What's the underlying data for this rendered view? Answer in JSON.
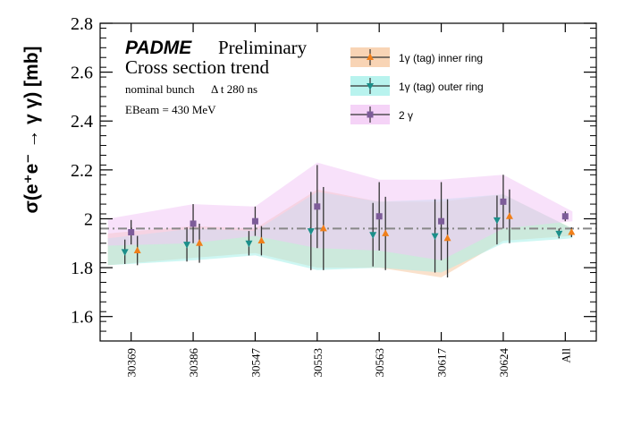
{
  "chart_data": {
    "type": "scatter",
    "title_main": "PADME",
    "title_tag": "Preliminary",
    "subtitle": "Cross section trend",
    "note1": "nominal bunch",
    "note1b": "Δ t 280 ns",
    "note2": "EBeam = 430 MeV",
    "ylabel": "σ(e⁺e⁻ → γ γ) [mb]",
    "ylim": [
      1.5,
      2.8
    ],
    "yticks": [
      "1.6",
      "1.8",
      "2",
      "2.2",
      "2.4",
      "2.6",
      "2.8"
    ],
    "categories": [
      "30369",
      "30386",
      "30547",
      "30553",
      "30563",
      "30617",
      "30624",
      "All"
    ],
    "reference_line": 1.96,
    "series": [
      {
        "name": "1γ (tag) inner ring",
        "color": "#f07f1a",
        "band_color": "#f6c9a2",
        "marker": "triangle-up",
        "values": [
          1.87,
          1.9,
          1.91,
          1.96,
          1.94,
          1.92,
          2.01,
          1.945
        ],
        "errors": [
          0.06,
          0.08,
          0.06,
          0.17,
          0.15,
          0.16,
          0.11,
          0.02
        ],
        "band_low": [
          1.81,
          1.84,
          1.86,
          1.8,
          1.8,
          1.76,
          1.91,
          1.93
        ],
        "band_high": [
          1.94,
          1.97,
          1.96,
          2.12,
          2.07,
          2.07,
          2.1,
          1.96
        ]
      },
      {
        "name": "1γ (tag) outer ring",
        "color": "#1b8f8a",
        "band_color": "#a6f0ea",
        "marker": "triangle-down",
        "values": [
          1.865,
          1.895,
          1.9,
          1.95,
          1.935,
          1.93,
          1.995,
          1.94
        ],
        "errors": [
          0.05,
          0.07,
          0.05,
          0.16,
          0.13,
          0.15,
          0.1,
          0.02
        ],
        "band_low": [
          1.81,
          1.83,
          1.85,
          1.79,
          1.8,
          1.78,
          1.9,
          1.92
        ],
        "band_high": [
          1.92,
          1.96,
          1.95,
          2.11,
          2.07,
          2.08,
          2.1,
          1.96
        ]
      },
      {
        "name": "2 γ",
        "color": "#7d5c99",
        "band_color": "#f3c8f5",
        "marker": "square",
        "values": [
          1.945,
          1.98,
          1.99,
          2.05,
          2.01,
          1.99,
          2.07,
          2.01
        ],
        "errors": [
          0.05,
          0.08,
          0.06,
          0.17,
          0.14,
          0.16,
          0.11,
          0.02
        ],
        "band_low": [
          1.89,
          1.9,
          1.93,
          1.88,
          1.87,
          1.83,
          1.96,
          1.99
        ],
        "band_high": [
          2.0,
          2.06,
          2.05,
          2.23,
          2.16,
          2.16,
          2.18,
          2.03
        ]
      }
    ],
    "legend_position": "top-right",
    "grid": false
  }
}
